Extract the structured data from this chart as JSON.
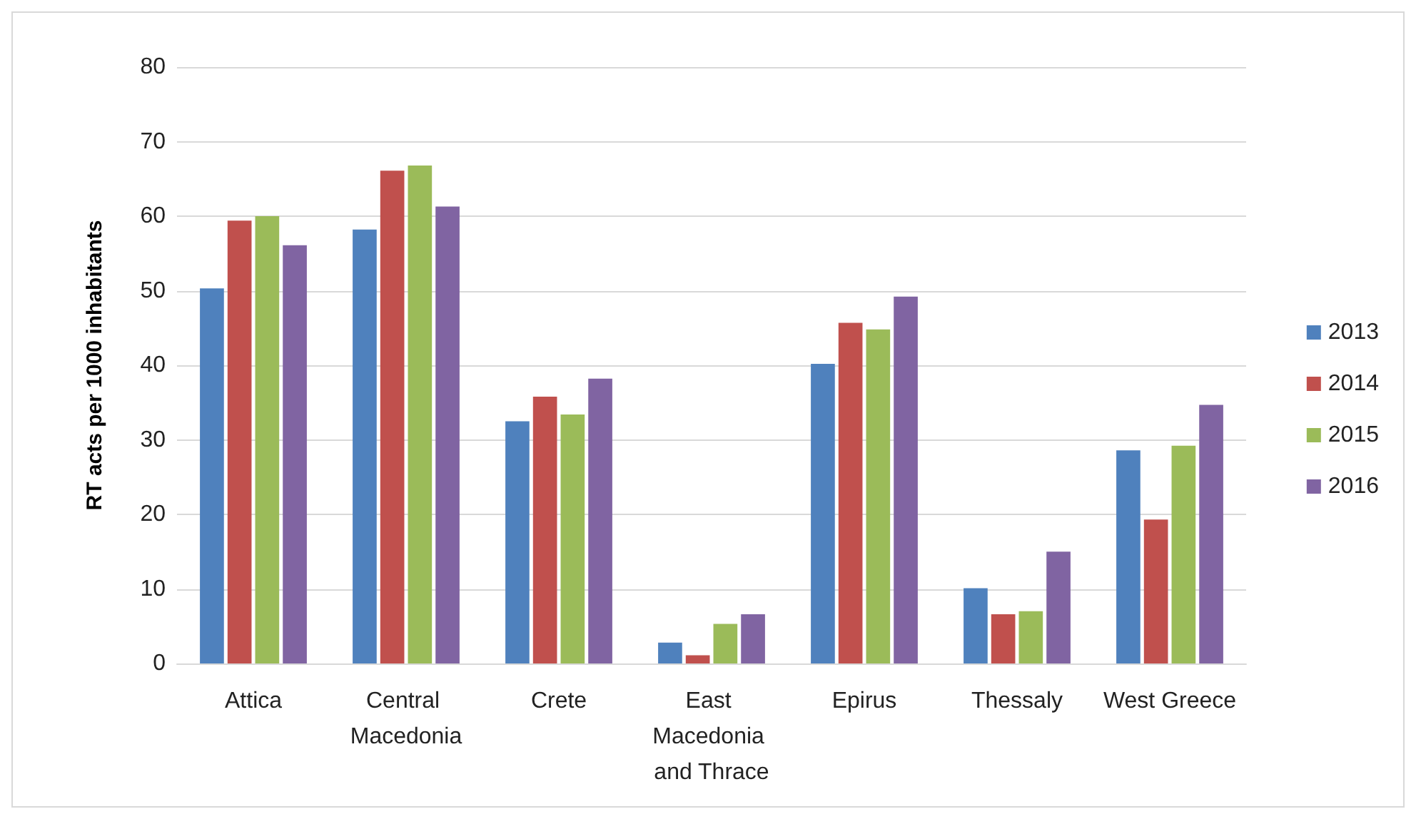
{
  "chart_data": {
    "type": "bar",
    "ylabel": "RT acts per 1000 inhabitants",
    "categories": [
      "Attica",
      "Central Macedonia",
      "Crete",
      "East Macedonia and Thrace",
      "Epirus",
      "Thessaly",
      "West Greece"
    ],
    "series": [
      {
        "name": "2013",
        "color": "#4f81bd",
        "values": [
          50.3,
          58.2,
          32.5,
          2.8,
          40.2,
          10.1,
          28.6
        ]
      },
      {
        "name": "2014",
        "color": "#c0504d",
        "values": [
          59.4,
          66.1,
          35.8,
          1.1,
          45.7,
          6.6,
          19.3
        ]
      },
      {
        "name": "2015",
        "color": "#9bbb59",
        "values": [
          60,
          66.8,
          33.4,
          5.3,
          44.8,
          7,
          29.2
        ]
      },
      {
        "name": "2016",
        "color": "#8064a2",
        "values": [
          56.1,
          61.3,
          38.2,
          6.6,
          49.2,
          15,
          34.7
        ]
      }
    ],
    "ylim": [
      0,
      80
    ],
    "yticks": [
      0,
      10,
      20,
      30,
      40,
      50,
      60,
      70,
      80
    ],
    "grid": "y",
    "legend": "right"
  }
}
